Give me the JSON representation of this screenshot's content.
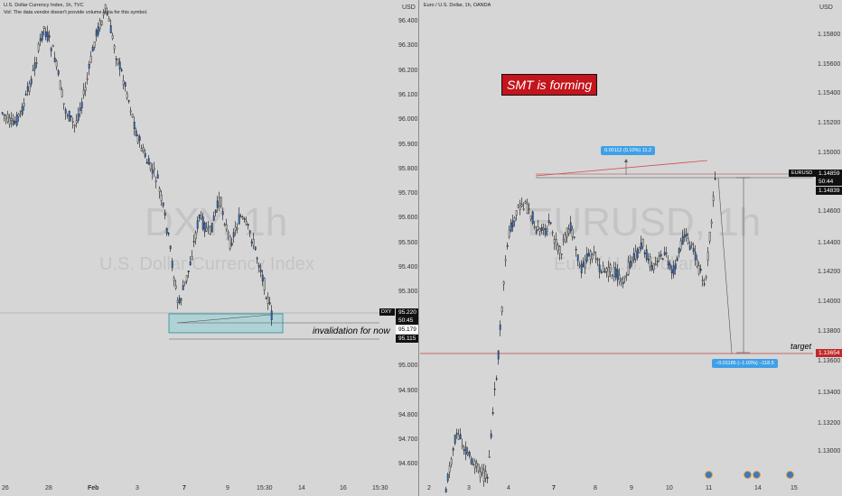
{
  "left": {
    "header_line1": "U.S. Dollar Currency Index, 1h, TVC",
    "header_line2": "Vol: The data vendor doesn't provide volume data for this symbol.",
    "currency": "USD",
    "watermark_symbol": "DXY, 1h",
    "watermark_name": "U.S. Dollar Currency Index",
    "y_ticks": [
      "96.400",
      "96.300",
      "96.200",
      "96.100",
      "96.000",
      "95.900",
      "95.800",
      "95.700",
      "95.600",
      "95.500",
      "95.400",
      "95.300",
      "95.200",
      "95.100",
      "95.000",
      "94.900",
      "94.800",
      "94.700",
      "94.600"
    ],
    "x_ticks": [
      "26",
      "28",
      "Feb",
      "3",
      "7",
      "9",
      "15:30",
      "14",
      "16",
      "15:30"
    ],
    "tag_symbol": "DXY",
    "tag_price": "95.220",
    "tag_countdown": "50:45",
    "tag_low_a": "95.179",
    "tag_low_b": "95.115",
    "annotation": "invalidation for now"
  },
  "right": {
    "header_line1": "Euro / U.S. Dollar, 1h, OANDA",
    "currency": "USD",
    "watermark_symbol": "EURUSD, 1h",
    "watermark_name": "Euro / U.S. Dollar",
    "smt_label": "SMT is forming",
    "y_ticks": [
      "1.15800",
      "1.15600",
      "1.15400",
      "1.15200",
      "1.15000",
      "1.14600",
      "1.14400",
      "1.14200",
      "1.14000",
      "1.13800",
      "1.13600",
      "1.13400",
      "1.13200",
      "1.13000"
    ],
    "x_ticks": [
      "2",
      "3",
      "4",
      "7",
      "8",
      "9",
      "10",
      "11",
      "14",
      "15"
    ],
    "tag_symbol": "EURUSD",
    "tag_price": "1.14859",
    "tag_countdown": "50:44",
    "tag_high_b": "1.14839",
    "tag_target": "1.13654",
    "target_label": "target",
    "measure_up": "0.00112 (0.10%) 11.2",
    "measure_down": "−0.01185 (−1.03%) −118.5"
  }
}
